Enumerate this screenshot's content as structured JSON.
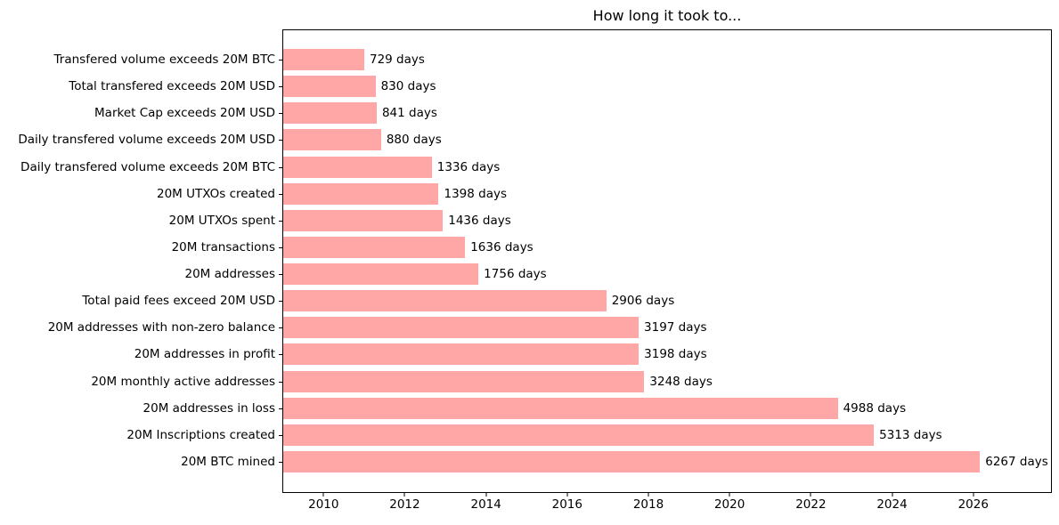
{
  "chart_data": {
    "type": "bar",
    "orientation": "horizontal",
    "title": "How long it took to...",
    "bar_color": "#ffa7a7",
    "grid": false,
    "legend": false,
    "axis": {
      "x_unit": "year",
      "max_days": 6906,
      "ticks": [
        {
          "label": "2010",
          "day": 363
        },
        {
          "label": "2012",
          "day": 1093
        },
        {
          "label": "2014",
          "day": 1824
        },
        {
          "label": "2016",
          "day": 2554
        },
        {
          "label": "2018",
          "day": 3285
        },
        {
          "label": "2020",
          "day": 4015
        },
        {
          "label": "2022",
          "day": 4746
        },
        {
          "label": "2024",
          "day": 5476
        },
        {
          "label": "2026",
          "day": 6207
        }
      ]
    },
    "items": [
      {
        "label": "Transfered volume exceeds 20M BTC",
        "days": 729,
        "value_label": "729 days"
      },
      {
        "label": "Total transfered exceeds 20M USD",
        "days": 830,
        "value_label": "830 days"
      },
      {
        "label": "Market Cap exceeds 20M USD",
        "days": 841,
        "value_label": "841 days"
      },
      {
        "label": "Daily transfered volume exceeds 20M USD",
        "days": 880,
        "value_label": "880 days"
      },
      {
        "label": "Daily transfered volume exceeds 20M BTC",
        "days": 1336,
        "value_label": "1336 days"
      },
      {
        "label": "20M UTXOs created",
        "days": 1398,
        "value_label": "1398 days"
      },
      {
        "label": "20M UTXOs spent",
        "days": 1436,
        "value_label": "1436 days"
      },
      {
        "label": "20M transactions",
        "days": 1636,
        "value_label": "1636 days"
      },
      {
        "label": "20M addresses",
        "days": 1756,
        "value_label": "1756 days"
      },
      {
        "label": "Total paid fees exceed 20M USD",
        "days": 2906,
        "value_label": "2906 days"
      },
      {
        "label": "20M addresses with non-zero balance",
        "days": 3197,
        "value_label": "3197 days"
      },
      {
        "label": "20M addresses in profit",
        "days": 3198,
        "value_label": "3198 days"
      },
      {
        "label": "20M monthly active addresses",
        "days": 3248,
        "value_label": "3248 days"
      },
      {
        "label": "20M addresses in loss",
        "days": 4988,
        "value_label": "4988 days"
      },
      {
        "label": "20M Inscriptions created",
        "days": 5313,
        "value_label": "5313 days"
      },
      {
        "label": "20M BTC mined",
        "days": 6267,
        "value_label": "6267 days"
      }
    ]
  }
}
